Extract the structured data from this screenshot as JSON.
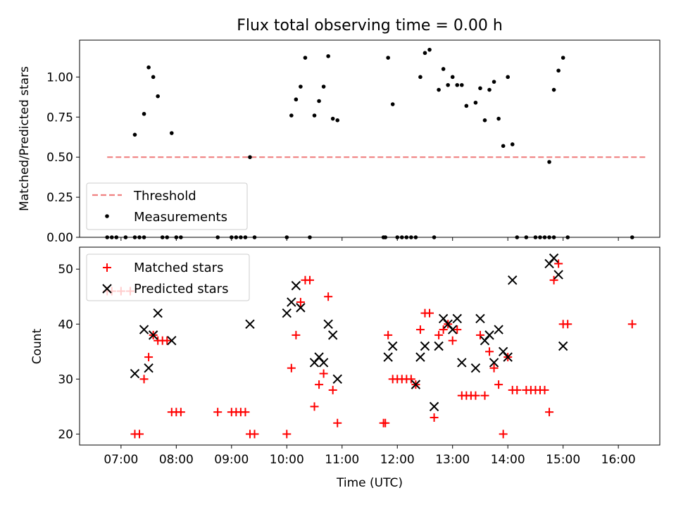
{
  "chart_data": [
    {
      "type": "scatter",
      "title": "Flux total observing time = 0.00 h",
      "xlabel": "",
      "ylabel": "Matched/Predicted stars",
      "ylim": [
        0,
        1.23
      ],
      "yticks": [
        "0.00",
        "0.25",
        "0.50",
        "0.75",
        "1.00"
      ],
      "grid": false,
      "legend_position": "lower-left",
      "threshold": {
        "name": "Threshold",
        "value": 0.5,
        "x_range": [
          "06:45",
          "16:30"
        ],
        "color": "#f08080"
      },
      "series": [
        {
          "name": "Measurements",
          "color": "#000000",
          "points": [
            [
              "06:45",
              0
            ],
            [
              "06:50",
              0
            ],
            [
              "06:55",
              0
            ],
            [
              "07:05",
              0
            ],
            [
              "07:15",
              0
            ],
            [
              "07:20",
              0
            ],
            [
              "07:15",
              0.64
            ],
            [
              "07:25",
              0
            ],
            [
              "07:25",
              0.77
            ],
            [
              "07:30",
              1.06
            ],
            [
              "07:35",
              1.0
            ],
            [
              "07:40",
              0.88
            ],
            [
              "07:45",
              0
            ],
            [
              "07:50",
              0
            ],
            [
              "07:55",
              0.65
            ],
            [
              "08:00",
              0
            ],
            [
              "08:05",
              0
            ],
            [
              "08:45",
              0
            ],
            [
              "09:00",
              0
            ],
            [
              "09:05",
              0
            ],
            [
              "09:10",
              0
            ],
            [
              "09:15",
              0
            ],
            [
              "09:20",
              0.5
            ],
            [
              "09:25",
              0
            ],
            [
              "10:00",
              0
            ],
            [
              "10:05",
              0.76
            ],
            [
              "10:10",
              0.86
            ],
            [
              "10:15",
              0.94
            ],
            [
              "10:20",
              1.12
            ],
            [
              "10:25",
              0
            ],
            [
              "10:30",
              0.76
            ],
            [
              "10:35",
              0.85
            ],
            [
              "10:40",
              0.94
            ],
            [
              "10:45",
              1.13
            ],
            [
              "10:50",
              0.74
            ],
            [
              "10:55",
              0.73
            ],
            [
              "11:45",
              0
            ],
            [
              "11:47",
              0
            ],
            [
              "11:50",
              1.12
            ],
            [
              "11:55",
              0.83
            ],
            [
              "12:00",
              0
            ],
            [
              "12:05",
              0
            ],
            [
              "12:10",
              0
            ],
            [
              "12:15",
              0
            ],
            [
              "12:20",
              0
            ],
            [
              "12:25",
              1.0
            ],
            [
              "12:30",
              1.15
            ],
            [
              "12:35",
              1.17
            ],
            [
              "12:40",
              0
            ],
            [
              "12:45",
              0.92
            ],
            [
              "12:50",
              1.05
            ],
            [
              "12:55",
              0.95
            ],
            [
              "13:00",
              1.0
            ],
            [
              "13:05",
              0.95
            ],
            [
              "13:10",
              0.95
            ],
            [
              "13:15",
              0.82
            ],
            [
              "13:25",
              0.84
            ],
            [
              "13:30",
              0.93
            ],
            [
              "13:35",
              0.73
            ],
            [
              "13:40",
              0.92
            ],
            [
              "13:45",
              0.97
            ],
            [
              "13:50",
              0.74
            ],
            [
              "13:55",
              0.57
            ],
            [
              "14:00",
              1.0
            ],
            [
              "14:05",
              0.58
            ],
            [
              "14:10",
              0
            ],
            [
              "14:20",
              0
            ],
            [
              "14:30",
              0
            ],
            [
              "14:35",
              0
            ],
            [
              "14:40",
              0
            ],
            [
              "14:45",
              0
            ],
            [
              "14:50",
              0
            ],
            [
              "14:45",
              0.47
            ],
            [
              "14:50",
              0.92
            ],
            [
              "14:55",
              1.04
            ],
            [
              "15:00",
              1.12
            ],
            [
              "15:05",
              0
            ],
            [
              "16:15",
              0
            ]
          ]
        }
      ]
    },
    {
      "type": "scatter",
      "title": "",
      "xlabel": "Time (UTC)",
      "ylabel": "Count",
      "ylim": [
        18,
        54
      ],
      "yticks": [
        "20",
        "30",
        "40",
        "50"
      ],
      "xlim": [
        "06:15",
        "16:45"
      ],
      "xticks": [
        "07:00",
        "08:00",
        "09:00",
        "10:00",
        "11:00",
        "12:00",
        "13:00",
        "14:00",
        "15:00",
        "16:00"
      ],
      "grid": false,
      "legend_position": "top-left",
      "series": [
        {
          "name": "Matched stars",
          "marker": "plus",
          "color": "#ff0000",
          "points": [
            [
              "06:45",
              46
            ],
            [
              "06:50",
              46
            ],
            [
              "07:00",
              46
            ],
            [
              "07:10",
              46
            ],
            [
              "07:15",
              20
            ],
            [
              "07:20",
              20
            ],
            [
              "07:25",
              30
            ],
            [
              "07:30",
              34
            ],
            [
              "07:35",
              38
            ],
            [
              "07:40",
              37
            ],
            [
              "07:45",
              37
            ],
            [
              "07:50",
              37
            ],
            [
              "07:55",
              24
            ],
            [
              "08:00",
              24
            ],
            [
              "08:05",
              24
            ],
            [
              "08:45",
              24
            ],
            [
              "09:00",
              24
            ],
            [
              "09:05",
              24
            ],
            [
              "09:10",
              24
            ],
            [
              "09:15",
              24
            ],
            [
              "09:20",
              20
            ],
            [
              "09:25",
              20
            ],
            [
              "10:00",
              20
            ],
            [
              "10:05",
              32
            ],
            [
              "10:10",
              38
            ],
            [
              "10:15",
              44
            ],
            [
              "10:20",
              48
            ],
            [
              "10:25",
              48
            ],
            [
              "10:30",
              25
            ],
            [
              "10:35",
              29
            ],
            [
              "10:40",
              31
            ],
            [
              "10:45",
              45
            ],
            [
              "10:50",
              28
            ],
            [
              "10:55",
              22
            ],
            [
              "11:45",
              22
            ],
            [
              "11:47",
              22
            ],
            [
              "11:50",
              38
            ],
            [
              "11:55",
              30
            ],
            [
              "12:00",
              30
            ],
            [
              "12:05",
              30
            ],
            [
              "12:10",
              30
            ],
            [
              "12:15",
              30
            ],
            [
              "12:20",
              29
            ],
            [
              "12:25",
              39
            ],
            [
              "12:30",
              42
            ],
            [
              "12:35",
              42
            ],
            [
              "12:40",
              23
            ],
            [
              "12:45",
              38
            ],
            [
              "12:50",
              39
            ],
            [
              "12:55",
              40
            ],
            [
              "13:00",
              37
            ],
            [
              "13:05",
              39
            ],
            [
              "13:10",
              27
            ],
            [
              "13:15",
              27
            ],
            [
              "13:20",
              27
            ],
            [
              "13:25",
              27
            ],
            [
              "13:30",
              38
            ],
            [
              "13:35",
              27
            ],
            [
              "13:40",
              35
            ],
            [
              "13:45",
              32
            ],
            [
              "13:50",
              29
            ],
            [
              "13:55",
              20
            ],
            [
              "14:00",
              34
            ],
            [
              "14:05",
              28
            ],
            [
              "14:10",
              28
            ],
            [
              "14:20",
              28
            ],
            [
              "14:25",
              28
            ],
            [
              "14:30",
              28
            ],
            [
              "14:35",
              28
            ],
            [
              "14:40",
              28
            ],
            [
              "14:45",
              24
            ],
            [
              "14:50",
              48
            ],
            [
              "14:55",
              51
            ],
            [
              "15:00",
              40
            ],
            [
              "15:05",
              40
            ],
            [
              "16:15",
              40
            ]
          ]
        },
        {
          "name": "Predicted stars",
          "marker": "x",
          "color": "#000000",
          "points": [
            [
              "07:15",
              31
            ],
            [
              "07:25",
              39
            ],
            [
              "07:30",
              32
            ],
            [
              "07:35",
              38
            ],
            [
              "07:40",
              42
            ],
            [
              "07:55",
              37
            ],
            [
              "09:20",
              40
            ],
            [
              "10:00",
              42
            ],
            [
              "10:05",
              44
            ],
            [
              "10:10",
              47
            ],
            [
              "10:15",
              43
            ],
            [
              "10:30",
              33
            ],
            [
              "10:35",
              34
            ],
            [
              "10:40",
              33
            ],
            [
              "10:45",
              40
            ],
            [
              "10:50",
              38
            ],
            [
              "10:55",
              30
            ],
            [
              "11:50",
              34
            ],
            [
              "11:55",
              36
            ],
            [
              "12:20",
              29
            ],
            [
              "12:25",
              34
            ],
            [
              "12:30",
              36
            ],
            [
              "12:40",
              25
            ],
            [
              "12:45",
              36
            ],
            [
              "12:50",
              41
            ],
            [
              "12:55",
              40
            ],
            [
              "13:00",
              39
            ],
            [
              "13:05",
              41
            ],
            [
              "13:10",
              33
            ],
            [
              "13:25",
              32
            ],
            [
              "13:30",
              41
            ],
            [
              "13:35",
              37
            ],
            [
              "13:40",
              38
            ],
            [
              "13:45",
              33
            ],
            [
              "13:50",
              39
            ],
            [
              "13:55",
              35
            ],
            [
              "14:00",
              34
            ],
            [
              "14:05",
              48
            ],
            [
              "14:45",
              51
            ],
            [
              "14:50",
              52
            ],
            [
              "14:55",
              49
            ],
            [
              "15:00",
              36
            ]
          ]
        }
      ]
    }
  ]
}
